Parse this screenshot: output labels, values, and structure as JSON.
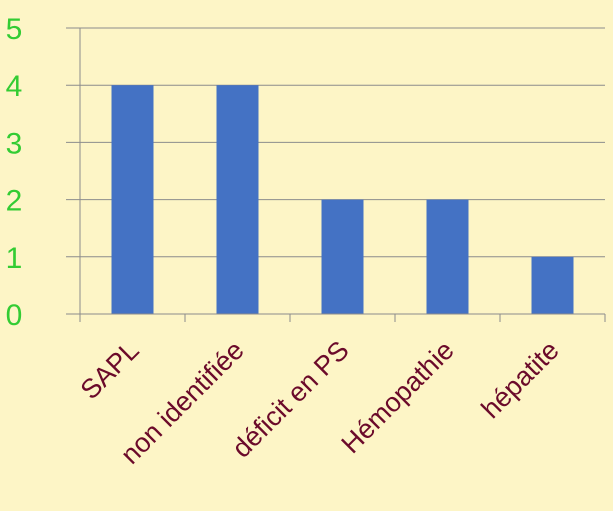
{
  "chart_data": {
    "type": "bar",
    "categories": [
      "SAPL",
      "non identifiée",
      "déficit en PS",
      "Hémopathie",
      "hépatite"
    ],
    "values": [
      4,
      4,
      2,
      2,
      1
    ],
    "title": "",
    "xlabel": "",
    "ylabel": "",
    "ylim": [
      0,
      5
    ],
    "yticks": [
      0,
      1,
      2,
      3,
      4,
      5
    ],
    "grid": true,
    "legend": "none"
  },
  "colors": {
    "background": "#fdf5c6",
    "bar": "#4472c4",
    "y_tick_labels": "#33cc33",
    "x_tick_labels": "#6b0a2a",
    "gridline": "#8c8c8c",
    "axis": "#8c8c8c"
  }
}
